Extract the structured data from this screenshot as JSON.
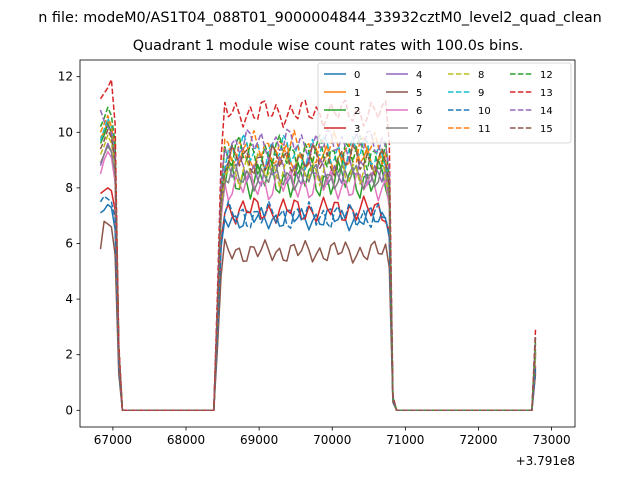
{
  "chart_data": {
    "type": "line",
    "suptitle": "n file: modeM0/AS1T04_088T01_9000004844_33932cztM0_level2_quad_clean",
    "title": "Quadrant 1 module wise count rates with 100.0s bins.",
    "xlabel": "",
    "ylabel": "",
    "x_offset_label": "+3.791e8",
    "xlim": [
      66550,
      73320
    ],
    "ylim": [
      -0.6,
      12.6
    ],
    "xticks": [
      67000,
      68000,
      69000,
      70000,
      71000,
      72000,
      73000
    ],
    "xtick_labels": [
      "67000",
      "68000",
      "69000",
      "70000",
      "71000",
      "72000",
      "73000"
    ],
    "yticks": [
      0,
      2,
      4,
      6,
      8,
      10,
      12
    ],
    "ytick_labels": [
      "0",
      "2",
      "4",
      "6",
      "8",
      "10",
      "12"
    ],
    "grid": false,
    "legend": {
      "location": "top-right",
      "columns": 4
    },
    "x_segments": [
      {
        "start": 66830,
        "step": 50,
        "count": 9
      },
      {
        "start": 67330,
        "step": 50,
        "count": 26
      },
      {
        "start": 68630,
        "step": 50,
        "count": 49
      },
      {
        "start": 71130,
        "step": 50,
        "count": 38
      }
    ],
    "series": [
      {
        "name": "0",
        "color": "#1f77b4",
        "style": "solid",
        "pre": [
          7.1,
          7.2,
          7.4,
          7.3,
          6.5,
          1.5,
          0
        ],
        "mid": 6.9,
        "amp": 0.3,
        "tail": 1.4
      },
      {
        "name": "1",
        "color": "#ff7f0e",
        "style": "solid",
        "pre": [
          9.8,
          10.0,
          10.4,
          9.9,
          9.2,
          2.1,
          0
        ],
        "mid": 9.1,
        "amp": 0.4,
        "tail": 2.0
      },
      {
        "name": "2",
        "color": "#2ca02c",
        "style": "solid",
        "pre": [
          9.6,
          9.9,
          10.3,
          10.0,
          9.0,
          2.2,
          0
        ],
        "mid": 8.3,
        "amp": 0.5,
        "tail": 2.1
      },
      {
        "name": "3",
        "color": "#d62728",
        "style": "solid",
        "pre": [
          7.8,
          7.9,
          8.0,
          7.9,
          7.2,
          1.7,
          0
        ],
        "mid": 7.2,
        "amp": 0.35,
        "tail": 1.6
      },
      {
        "name": "4",
        "color": "#9467bd",
        "style": "solid",
        "pre": [
          8.8,
          9.2,
          9.6,
          9.3,
          8.4,
          1.9,
          0
        ],
        "mid": 8.6,
        "amp": 0.4,
        "tail": 2.2
      },
      {
        "name": "5",
        "color": "#8c564b",
        "style": "solid",
        "pre": [
          5.8,
          6.8,
          6.7,
          6.6,
          5.6,
          1.3,
          0
        ],
        "mid": 5.7,
        "amp": 0.3,
        "tail": 1.3
      },
      {
        "name": "6",
        "color": "#e377c2",
        "style": "solid",
        "pre": [
          8.5,
          9.0,
          9.3,
          9.1,
          8.2,
          1.8,
          0
        ],
        "mid": 8.1,
        "amp": 0.4,
        "tail": 1.9
      },
      {
        "name": "7",
        "color": "#7f7f7f",
        "style": "solid",
        "pre": [
          8.9,
          9.2,
          9.5,
          9.3,
          8.5,
          1.9,
          0
        ],
        "mid": 8.4,
        "amp": 0.35,
        "tail": 2.0
      },
      {
        "name": "8",
        "color": "#bcbd22",
        "style": "dashed",
        "pre": [
          9.2,
          9.5,
          9.9,
          9.6,
          8.8,
          2.0,
          0
        ],
        "mid": 8.7,
        "amp": 0.45,
        "tail": 2.1
      },
      {
        "name": "9",
        "color": "#17becf",
        "style": "dashed",
        "pre": [
          9.7,
          10.1,
          10.5,
          10.2,
          9.3,
          2.2,
          0
        ],
        "mid": 9.3,
        "amp": 0.45,
        "tail": 2.3
      },
      {
        "name": "10",
        "color": "#1f77b4",
        "style": "dashed",
        "pre": [
          7.5,
          7.7,
          7.6,
          7.5,
          6.9,
          1.6,
          0
        ],
        "mid": 7.0,
        "amp": 0.35,
        "tail": 1.5
      },
      {
        "name": "11",
        "color": "#ff7f0e",
        "style": "dashed",
        "pre": [
          10.0,
          10.3,
          10.6,
          10.2,
          9.4,
          2.2,
          0
        ],
        "mid": 9.4,
        "amp": 0.45,
        "tail": 2.4
      },
      {
        "name": "12",
        "color": "#2ca02c",
        "style": "dashed",
        "pre": [
          10.2,
          10.5,
          10.9,
          10.6,
          9.6,
          2.3,
          0
        ],
        "mid": 9.2,
        "amp": 0.5,
        "tail": 2.5
      },
      {
        "name": "13",
        "color": "#d62728",
        "style": "dashed",
        "pre": [
          11.2,
          11.4,
          11.6,
          11.9,
          10.3,
          2.4,
          0
        ],
        "mid": 10.7,
        "amp": 0.35,
        "tail": 2.9
      },
      {
        "name": "14",
        "color": "#9467bd",
        "style": "dashed",
        "pre": [
          10.8,
          10.4,
          10.2,
          10.0,
          9.1,
          2.1,
          0
        ],
        "mid": 9.6,
        "amp": 0.4,
        "tail": 2.6
      },
      {
        "name": "15",
        "color": "#8c564b",
        "style": "dashed",
        "pre": [
          9.4,
          9.7,
          10.1,
          9.8,
          8.9,
          2.0,
          0
        ],
        "mid": 9.0,
        "amp": 0.4,
        "tail": 2.7
      }
    ]
  }
}
